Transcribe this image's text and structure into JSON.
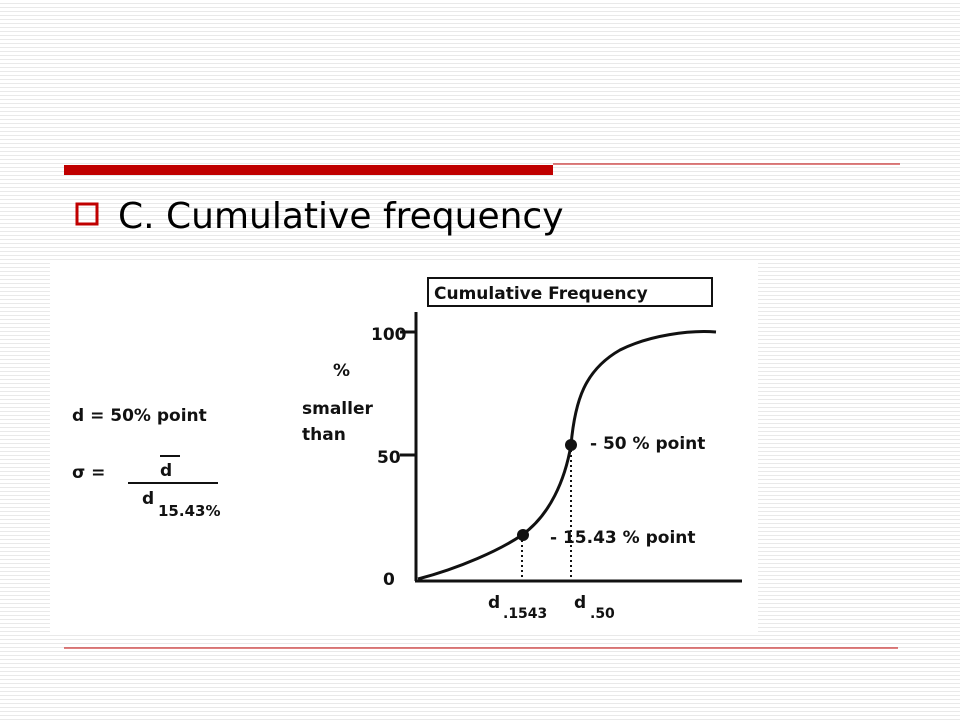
{
  "slide": {
    "title": "C. Cumulative frequency"
  },
  "figure": {
    "title": "Cumulative Frequency",
    "y_axis_label": [
      "%",
      "smaller",
      "than"
    ],
    "y_ticks": [
      "100",
      "50",
      "0"
    ],
    "definition": "d = 50% point",
    "sigma": {
      "symbol": "σ =",
      "numerator": "d",
      "denominator": "d",
      "subscript": "15.43%"
    },
    "annotations": [
      "- 50 % point",
      "- 15.43 % point"
    ],
    "x_labels": [
      {
        "symbol": "d",
        "subscript": ".1543"
      },
      {
        "symbol": "d",
        "subscript": ".50"
      }
    ]
  }
}
